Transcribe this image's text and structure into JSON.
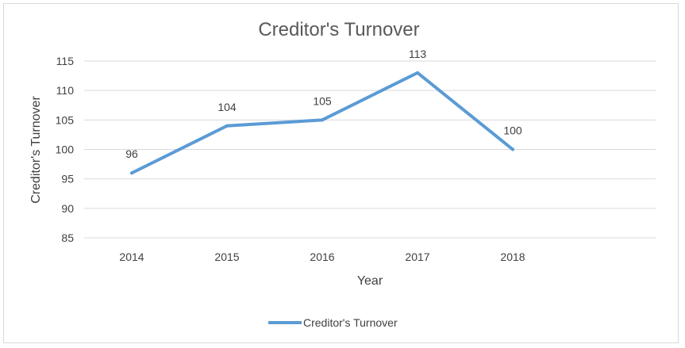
{
  "chart_data": {
    "type": "line",
    "title": "Creditor's Turnover",
    "xlabel": "Year",
    "ylabel": "Creditor's Turnover",
    "categories": [
      "2014",
      "2015",
      "2016",
      "2017",
      "2018"
    ],
    "series": [
      {
        "name": "Creditor's Turnover",
        "values": [
          96,
          104,
          105,
          113,
          100
        ],
        "color": "#5b9bd5"
      }
    ],
    "ylim": [
      85,
      115
    ],
    "yticks": [
      85,
      90,
      95,
      100,
      105,
      110,
      115
    ],
    "grid": true,
    "legend_position": "bottom",
    "data_labels": true
  }
}
